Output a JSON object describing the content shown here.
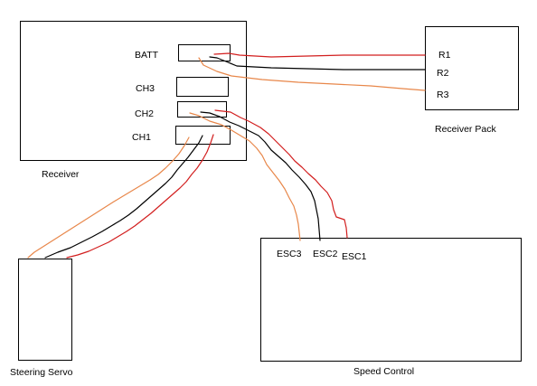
{
  "colors": {
    "red": "#d21e1e",
    "black": "#000000",
    "orange": "#e8874a"
  },
  "receiver": {
    "label": "Receiver",
    "ports": {
      "batt": "BATT",
      "ch3": "CH3",
      "ch2": "CH2",
      "ch1": "CH1"
    }
  },
  "receiver_pack": {
    "label": "Receiver Pack",
    "terminals": {
      "r1": "R1",
      "r2": "R2",
      "r3": "R3"
    }
  },
  "steering_servo": {
    "label": "Steering Servo"
  },
  "speed_control": {
    "label": "Speed Control",
    "terminals": {
      "esc1": "ESC1",
      "esc2": "ESC2",
      "esc3": "ESC3"
    }
  }
}
